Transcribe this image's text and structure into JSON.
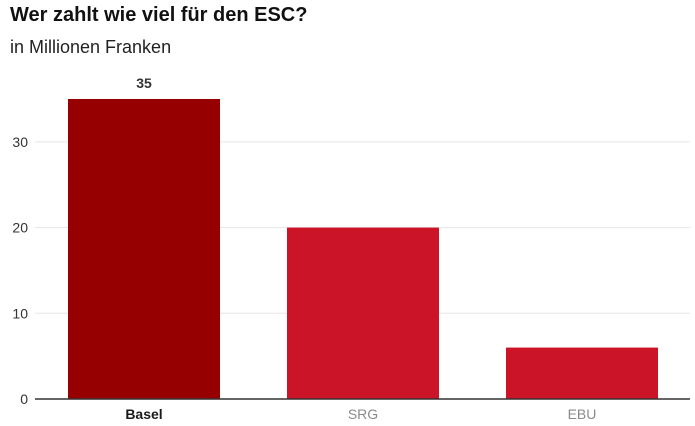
{
  "title": "Wer zahlt wie viel für den ESC?",
  "subtitle": "in Millionen Franken",
  "chart_data": {
    "type": "bar",
    "categories": [
      "Basel",
      "SRG",
      "EBU"
    ],
    "values": [
      35,
      20,
      6
    ],
    "data_labels": [
      "35",
      "",
      ""
    ],
    "ylim": [
      0,
      35
    ],
    "yticks": [
      0,
      10,
      20,
      30
    ],
    "ytick_labels": [
      "0",
      "10",
      "20",
      "30"
    ],
    "grid": true,
    "bar_colors": [
      "#960000",
      "#cc1428",
      "#cc1428"
    ],
    "category_label_colors": [
      "#1a1a1a",
      "#8a8a8a",
      "#8a8a8a"
    ],
    "grid_color": "#e6e6e6",
    "axis_color": "#333333"
  }
}
